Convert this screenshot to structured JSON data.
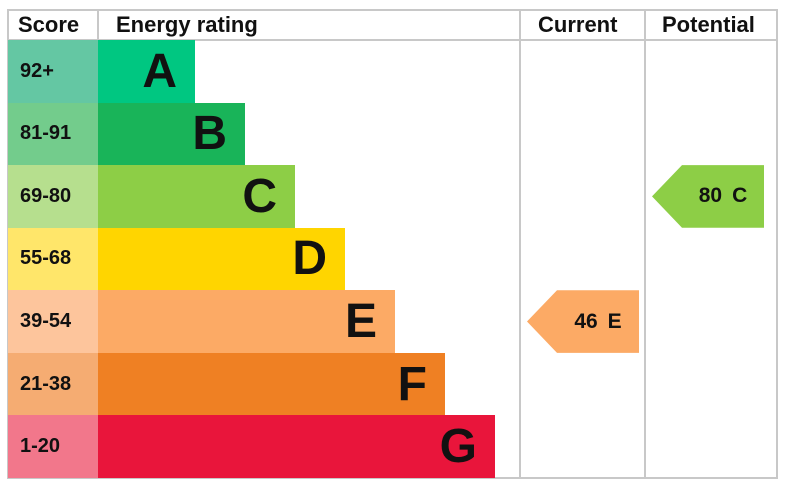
{
  "chart_data": {
    "type": "table",
    "headers": {
      "score": "Score",
      "rating": "Energy rating",
      "current": "Current",
      "potential": "Potential"
    },
    "bands": [
      {
        "letter": "A",
        "range": "92+",
        "color": "#00c781",
        "score_color": "#64c7a3"
      },
      {
        "letter": "B",
        "range": "81-91",
        "color": "#19b459",
        "score_color": "#73cc8c"
      },
      {
        "letter": "C",
        "range": "69-80",
        "color": "#8dce46",
        "score_color": "#b6df8e"
      },
      {
        "letter": "D",
        "range": "55-68",
        "color": "#ffd500",
        "score_color": "#ffe66a"
      },
      {
        "letter": "E",
        "range": "39-54",
        "color": "#fcaa65",
        "score_color": "#fdc59c"
      },
      {
        "letter": "F",
        "range": "21-38",
        "color": "#ef8023",
        "score_color": "#f5ac72"
      },
      {
        "letter": "G",
        "range": "1-20",
        "color": "#e9153b",
        "score_color": "#f2778b"
      }
    ],
    "current": {
      "value": "46",
      "letter": "E",
      "color": "#fcaa65"
    },
    "potential": {
      "value": "80",
      "letter": "C",
      "color": "#8dce46"
    }
  }
}
